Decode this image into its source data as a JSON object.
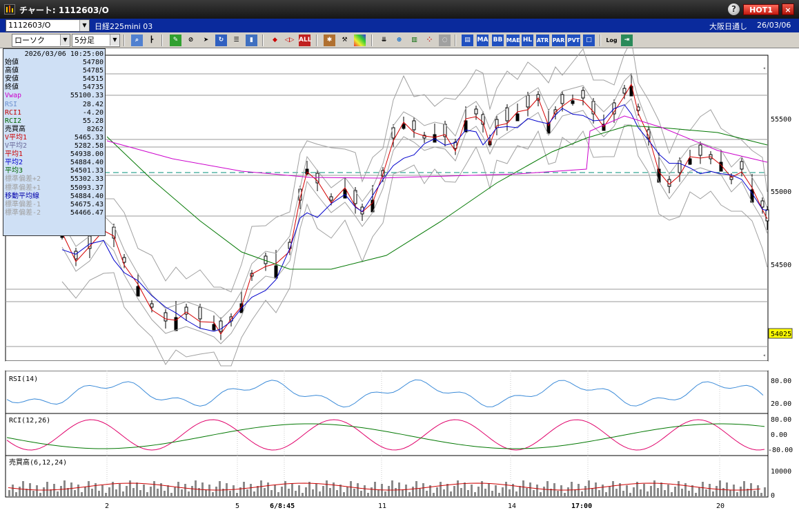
{
  "window": {
    "title": "チャート: 1112603/O",
    "help_label": "?",
    "hot_label": "HOT1",
    "close_label": "×"
  },
  "infobar": {
    "symbol": "1112603/O",
    "product": "日経225mini 03",
    "session": "大阪日通し",
    "date": "26/03/06"
  },
  "toolbar": {
    "chart_type": "ローソク",
    "interval": "5分足",
    "buttons": [
      "search-icon",
      "cursor-icon",
      "pen-icon",
      "eraser-icon",
      "pointer-icon",
      "redo-icon",
      "list-icon",
      "trash-icon",
      "grid-icon",
      "arrows-icon",
      "all-icon",
      "settings-icon",
      "wrench-icon",
      "palette-icon",
      "chart-down-icon",
      "zoom-icon",
      "chart-window-icon",
      "dots-icon",
      "disabled-icon",
      "price-table-icon",
      "MA",
      "BB",
      "MAE",
      "HL",
      "ATR",
      "PAR",
      "PVT",
      "box-icon",
      "Log",
      "exit-icon"
    ],
    "labels": {
      "MA": "MA",
      "BB": "BB",
      "MAE": "MAE",
      "HL": "HL",
      "ATR": "ATR",
      "PAR": "PAR",
      "PVT": "PVT",
      "Log": "Log",
      "ALL": "ALL"
    }
  },
  "data_window": {
    "datetime": "2026/03/06  10:25:00",
    "rows": [
      {
        "label": "始値",
        "value": "54780",
        "color": "#000000"
      },
      {
        "label": "高値",
        "value": "54785",
        "color": "#000000"
      },
      {
        "label": "安値",
        "value": "54515",
        "color": "#000000"
      },
      {
        "label": "終値",
        "value": "54735",
        "color": "#000000"
      },
      {
        "label": "Vwap",
        "value": "55100.33",
        "color": "#cc00cc"
      },
      {
        "label": "RSI",
        "value": "28.42",
        "color": "#6a8fd0"
      },
      {
        "label": "RCI1",
        "value": "-4.20",
        "color": "#c00000"
      },
      {
        "label": "RCI2",
        "value": "55.28",
        "color": "#006600"
      },
      {
        "label": "売買高",
        "value": "8262",
        "color": "#000000"
      },
      {
        "label": "V平均1",
        "value": "5465.33",
        "color": "#cc0000"
      },
      {
        "label": "V平均2",
        "value": "5282.58",
        "color": "#6a6a9a"
      },
      {
        "label": "平均1",
        "value": "54938.00",
        "color": "#cc0000"
      },
      {
        "label": "平均2",
        "value": "54884.40",
        "color": "#0000cc"
      },
      {
        "label": "平均3",
        "value": "54501.33",
        "color": "#006600"
      },
      {
        "label": "標準偏差+2",
        "value": "55302.33",
        "color": "#a0a0a0"
      },
      {
        "label": "標準偏差+1",
        "value": "55093.37",
        "color": "#a0a0a0"
      },
      {
        "label": "移動平均線",
        "value": "54884.40",
        "color": "#0000aa"
      },
      {
        "label": "標準偏差-1",
        "value": "54675.43",
        "color": "#a0a0a0"
      },
      {
        "label": "標準偏差-2",
        "value": "54466.47",
        "color": "#a0a0a0"
      }
    ]
  },
  "main_chart": {
    "y_ticks": [
      "55500",
      "55000",
      "54500"
    ],
    "current_price": "54025",
    "x_ticks": [
      "2",
      "5",
      "6/8:45",
      "11",
      "14",
      "17:00",
      "20"
    ]
  },
  "panels": {
    "rsi": {
      "label": "RSI(14)",
      "ticks": [
        "80.00",
        "20.00"
      ]
    },
    "rci": {
      "label": "RCI(12,26)",
      "ticks": [
        "80.00",
        "0.00",
        "-80.00"
      ]
    },
    "volume": {
      "label": "売買高(6,12,24)",
      "ticks": [
        "10000",
        "0"
      ]
    }
  },
  "colors": {
    "ma_short": "#d40000",
    "ma_mid": "#0000cc",
    "ma_long": "#007700",
    "vwap": "#cc00cc",
    "bollinger": "#a0a0a0",
    "rsi_line": "#3a8ad8",
    "rci1": "#e0006a",
    "rci2": "#007700",
    "dashed": "#008f7a"
  }
}
